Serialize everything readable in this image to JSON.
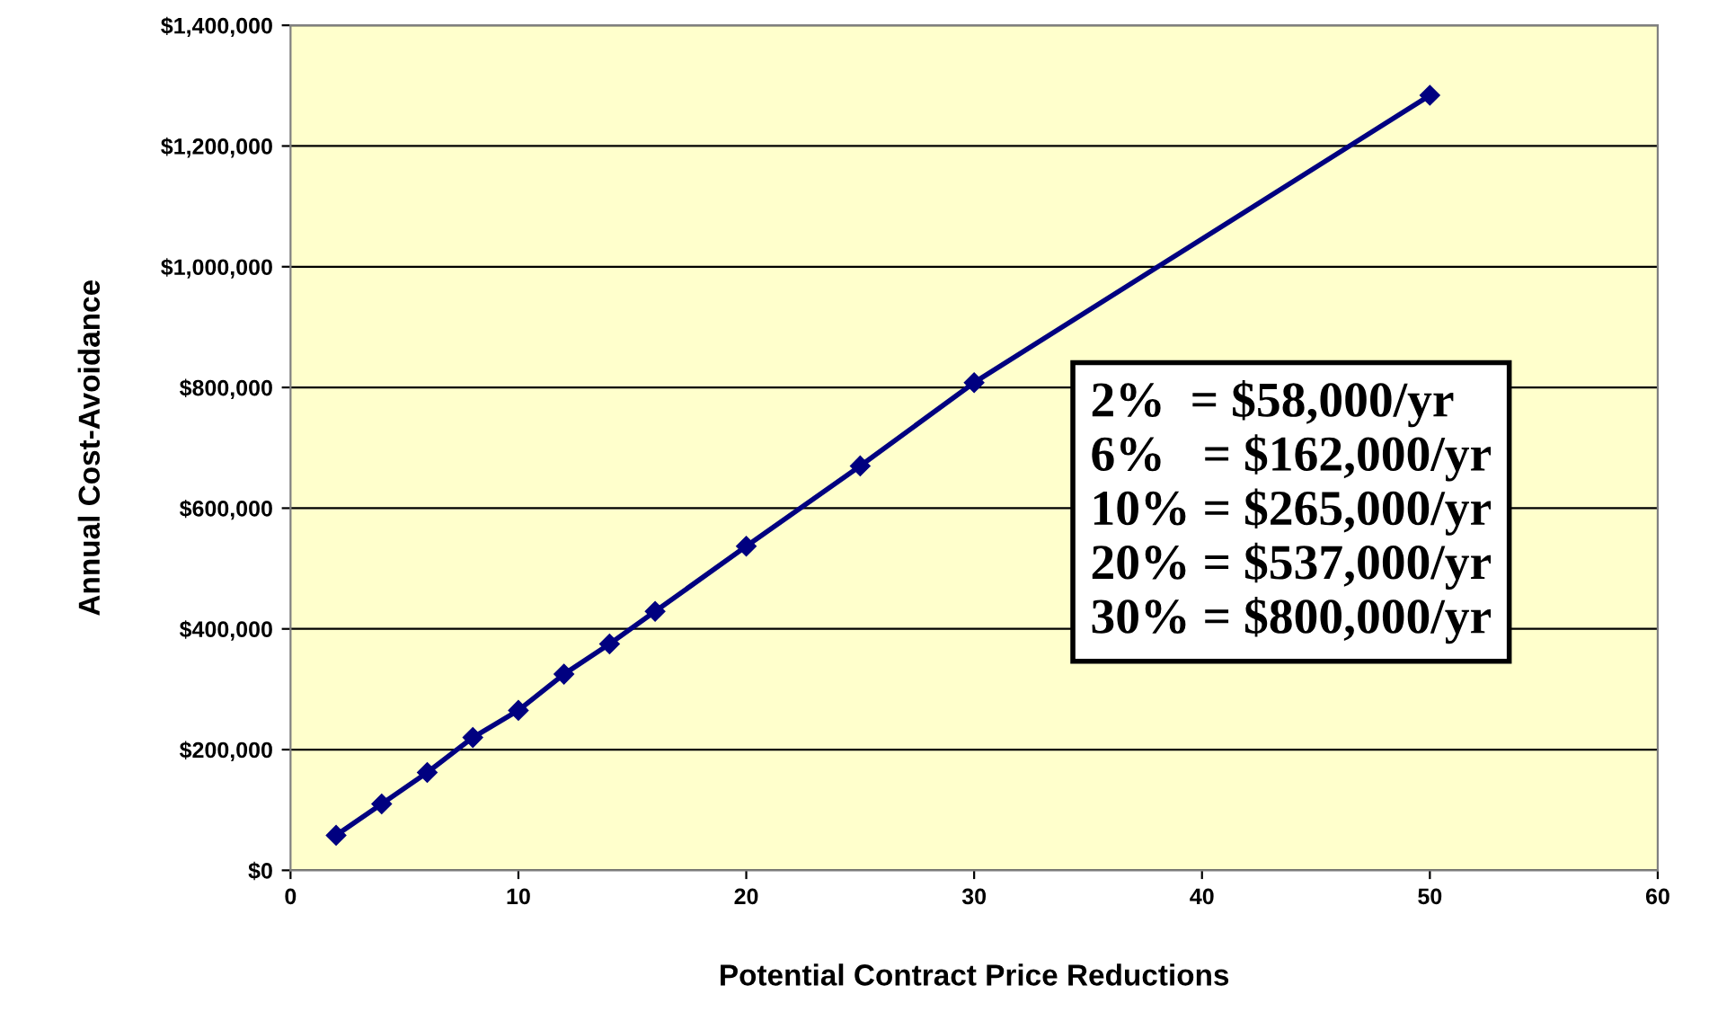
{
  "chart_data": {
    "type": "line",
    "xlabel": "Potential Contract Price Reductions",
    "ylabel": "Annual Cost-Avoidance",
    "x": [
      2,
      4,
      6,
      8,
      10,
      12,
      14,
      16,
      20,
      25,
      30,
      50
    ],
    "series": [
      {
        "color": "#000080",
        "values": [
          58000,
          110000,
          162000,
          220000,
          265000,
          325000,
          375000,
          429000,
          537000,
          670000,
          808000,
          1284000
        ]
      }
    ],
    "xlim": [
      0,
      60
    ],
    "xticks": [
      0,
      10,
      20,
      30,
      40,
      50,
      60
    ],
    "ylim": [
      0,
      1400000
    ],
    "yticks": [
      {
        "value": 0,
        "label": "$0"
      },
      {
        "value": 200000,
        "label": "$200,000"
      },
      {
        "value": 400000,
        "label": "$400,000"
      },
      {
        "value": 600000,
        "label": "$600,000"
      },
      {
        "value": 800000,
        "label": "$800,000"
      },
      {
        "value": 1000000,
        "label": "$1,000,000"
      },
      {
        "value": 1200000,
        "label": "$1,200,000"
      },
      {
        "value": 1400000,
        "label": "$1,400,000"
      }
    ],
    "grid": "y",
    "marker": "diamond",
    "line_style": "solid",
    "legend": false,
    "annotations": [
      "2%  = $58,000/yr",
      "6%   = $162,000/yr",
      "10% = $265,000/yr",
      "20% = $537,000/yr",
      "30% = $800,000/yr"
    ]
  }
}
